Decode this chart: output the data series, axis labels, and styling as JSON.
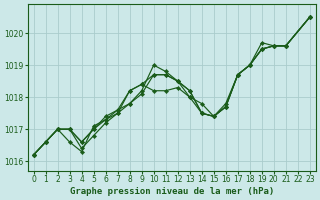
{
  "title": "Graphe pression niveau de la mer (hPa)",
  "bg_color": "#cce8e8",
  "grid_color": "#aacccc",
  "line_color": "#1a5c1a",
  "marker_color": "#1a5c1a",
  "xlim": [
    -0.5,
    23.5
  ],
  "ylim": [
    1015.7,
    1020.9
  ],
  "yticks": [
    1016,
    1017,
    1018,
    1019,
    1020
  ],
  "xticks": [
    0,
    1,
    2,
    3,
    4,
    5,
    6,
    7,
    8,
    9,
    10,
    11,
    12,
    13,
    14,
    15,
    16,
    17,
    18,
    19,
    20,
    21,
    22,
    23
  ],
  "series": [
    {
      "x": [
        0,
        1,
        2,
        3,
        4,
        5,
        6,
        7,
        8,
        9,
        10,
        11,
        12,
        13,
        14,
        15,
        16,
        17,
        18,
        19,
        20,
        21,
        23
      ],
      "y": [
        1016.2,
        1016.6,
        1017.0,
        1016.6,
        1016.3,
        1017.1,
        1017.3,
        1017.6,
        1017.8,
        1018.1,
        1018.7,
        1018.7,
        1018.5,
        1018.2,
        1017.5,
        1017.4,
        1017.7,
        1018.7,
        1019.0,
        1019.5,
        1019.6,
        1019.6,
        1020.5
      ]
    },
    {
      "x": [
        0,
        1,
        2,
        3,
        4,
        5,
        6,
        7,
        8,
        9,
        10,
        11,
        12,
        13,
        14,
        15,
        16,
        17,
        18,
        19,
        20,
        21,
        23
      ],
      "y": [
        1016.2,
        1016.6,
        1017.0,
        1017.0,
        1016.4,
        1016.8,
        1017.2,
        1017.5,
        1018.2,
        1018.4,
        1018.2,
        1018.2,
        1018.3,
        1018.0,
        1017.8,
        1017.4,
        1017.8,
        1018.7,
        1019.0,
        1019.7,
        1019.6,
        1019.6,
        1020.5
      ]
    },
    {
      "x": [
        0,
        1,
        2,
        3,
        4,
        5,
        6,
        7,
        8,
        9,
        10,
        11,
        12,
        13,
        14,
        15,
        16,
        17,
        18,
        19,
        20,
        21,
        23
      ],
      "y": [
        1016.2,
        1016.6,
        1017.0,
        1017.0,
        1016.6,
        1017.0,
        1017.3,
        1017.5,
        1017.8,
        1018.2,
        1019.0,
        1018.8,
        1018.5,
        1018.0,
        1017.5,
        1017.4,
        1017.7,
        1018.7,
        1019.0,
        1019.5,
        1019.6,
        1019.6,
        1020.5
      ]
    },
    {
      "x": [
        0,
        1,
        2,
        3,
        4,
        5,
        6,
        7,
        8,
        9,
        10,
        11,
        12,
        13,
        14,
        15,
        16,
        17,
        18,
        19,
        20,
        21,
        23
      ],
      "y": [
        1016.2,
        1016.6,
        1017.0,
        1017.0,
        1016.6,
        1017.0,
        1017.4,
        1017.6,
        1018.2,
        1018.4,
        1018.7,
        1018.7,
        1018.5,
        1018.2,
        1017.5,
        1017.4,
        1017.7,
        1018.7,
        1019.0,
        1019.5,
        1019.6,
        1019.6,
        1020.5
      ]
    }
  ]
}
